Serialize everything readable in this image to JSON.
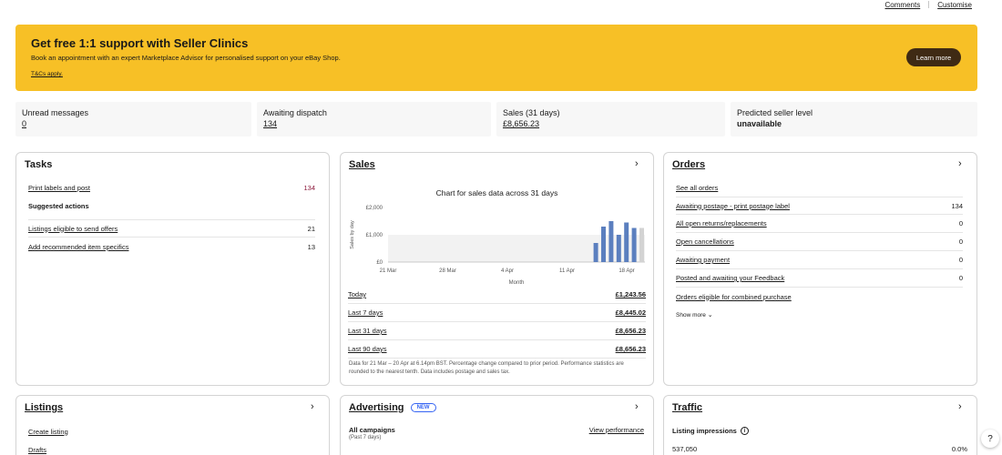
{
  "header_links": {
    "comments": "Comments",
    "customise": "Customise"
  },
  "banner": {
    "title": "Get free 1:1 support with Seller Clinics",
    "description": "Book an appointment with an expert Marketplace Advisor for personalised support on your eBay Shop.",
    "tc": "T&Cs apply.",
    "button": "Learn more",
    "bg_color": "#f7c026",
    "button_color": "#3f2a14"
  },
  "stats": [
    {
      "label": "Unread messages",
      "value": "0"
    },
    {
      "label": "Awaiting dispatch",
      "value": "134"
    },
    {
      "label": "Sales (31 days)",
      "value": "£8,656.23"
    },
    {
      "label": "Predicted seller level",
      "value": "unavailable"
    }
  ],
  "tasks": {
    "title": "Tasks",
    "print": {
      "label": "Print labels and post",
      "value": "134"
    },
    "suggested_heading": "Suggested actions",
    "items": [
      {
        "label": "Listings eligible to send offers",
        "value": "21"
      },
      {
        "label": "Add recommended item specifics",
        "value": "13"
      }
    ],
    "alert_color": "#8a1538"
  },
  "sales": {
    "title": "Sales",
    "chart_title": "Chart for sales data across 31 days",
    "rows": [
      {
        "label": "Today",
        "value": "£1,243.56"
      },
      {
        "label": "Last 7 days",
        "value": "£8,445.02"
      },
      {
        "label": "Last 31 days",
        "value": "£8,656.23"
      },
      {
        "label": "Last 90 days",
        "value": "£8,656.23"
      }
    ],
    "footnote": "Data for 21 Mar – 20 Apr at 6.14pm BST. Percentage change compared to prior period. Performance statistics are rounded to the nearest tenth. Data includes postage and sales tax."
  },
  "chart_data": {
    "type": "bar",
    "xlabel": "Month",
    "ylabel": "Sales by day",
    "ylim": [
      0,
      2000
    ],
    "yticks": [
      "£0",
      "£1,000",
      "£2,000"
    ],
    "xticks": [
      "21 Mar",
      "28 Mar",
      "4 Apr",
      "11 Apr",
      "18 Apr"
    ],
    "x": [
      "14 Apr",
      "15 Apr",
      "16 Apr",
      "17 Apr",
      "18 Apr",
      "19 Apr",
      "20 Apr"
    ],
    "values": [
      700,
      1300,
      1500,
      1000,
      1450,
      1250,
      1250
    ],
    "bar_color": "#5b7fbf",
    "today_color": "#d3d3d3",
    "grid": false
  },
  "orders": {
    "title": "Orders",
    "see_all": "See all orders",
    "items": [
      {
        "label": "Awaiting postage - print postage label",
        "value": "134"
      },
      {
        "label": "All open returns/replacements",
        "value": "0"
      },
      {
        "label": "Open cancellations",
        "value": "0"
      },
      {
        "label": "Awaiting payment",
        "value": "0"
      },
      {
        "label": "Posted and awaiting your Feedback",
        "value": "0"
      },
      {
        "label": "Orders eligible for combined purchase",
        "value": ""
      }
    ],
    "show_more": "Show more"
  },
  "listings": {
    "title": "Listings",
    "items": [
      "Create listing",
      "Drafts"
    ]
  },
  "advertising": {
    "title": "Advertising",
    "badge": "NEW",
    "campaigns": "All campaigns",
    "period": "(Past 7 days)",
    "view": "View performance"
  },
  "traffic": {
    "title": "Traffic",
    "impressions_label": "Listing impressions",
    "impressions": "537,050",
    "change": "0.0%"
  },
  "help": "?"
}
